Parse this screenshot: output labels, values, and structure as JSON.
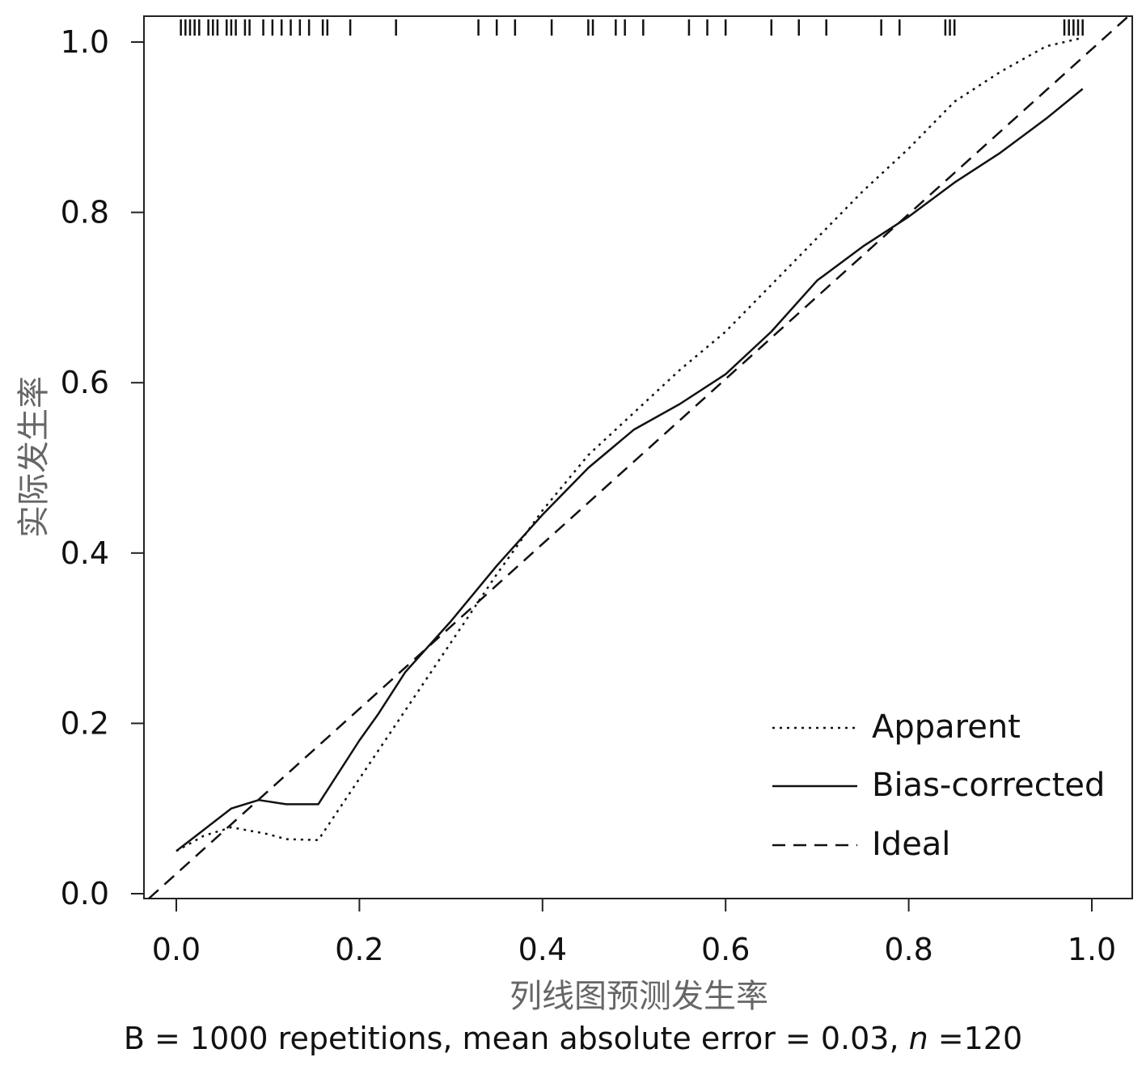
{
  "chart_data": {
    "type": "line",
    "xlabel": "列线图预测发生率",
    "ylabel": "实际发生率",
    "xlim": [
      0.0,
      1.0
    ],
    "ylim": [
      0.0,
      1.0
    ],
    "xticks": [
      "0.0",
      "0.2",
      "0.4",
      "0.6",
      "0.8",
      "1.0"
    ],
    "yticks": [
      "0.0",
      "0.2",
      "0.4",
      "0.6",
      "0.8",
      "1.0"
    ],
    "grid": false,
    "legend_position": "bottom-right",
    "series": [
      {
        "name": "Apparent",
        "style": "dotted",
        "x": [
          0.0,
          0.03,
          0.06,
          0.1,
          0.12,
          0.155,
          0.2,
          0.25,
          0.3,
          0.35,
          0.4,
          0.45,
          0.5,
          0.55,
          0.6,
          0.65,
          0.7,
          0.75,
          0.8,
          0.85,
          0.9,
          0.95,
          0.99
        ],
        "y": [
          0.05,
          0.068,
          0.078,
          0.07,
          0.064,
          0.063,
          0.135,
          0.215,
          0.295,
          0.375,
          0.45,
          0.515,
          0.565,
          0.615,
          0.66,
          0.715,
          0.77,
          0.825,
          0.875,
          0.93,
          0.965,
          0.995,
          1.005
        ]
      },
      {
        "name": "Bias-corrected",
        "style": "solid",
        "x": [
          0.0,
          0.03,
          0.06,
          0.09,
          0.12,
          0.155,
          0.2,
          0.22,
          0.25,
          0.3,
          0.35,
          0.4,
          0.45,
          0.5,
          0.55,
          0.6,
          0.65,
          0.7,
          0.75,
          0.8,
          0.85,
          0.9,
          0.95,
          0.99
        ],
        "y": [
          0.05,
          0.075,
          0.1,
          0.11,
          0.105,
          0.105,
          0.18,
          0.21,
          0.26,
          0.32,
          0.385,
          0.445,
          0.5,
          0.545,
          0.575,
          0.61,
          0.66,
          0.72,
          0.76,
          0.795,
          0.835,
          0.87,
          0.91,
          0.945
        ]
      },
      {
        "name": "Ideal",
        "style": "dashed",
        "x": [
          -0.03,
          1.04
        ],
        "y": [
          -0.03,
          1.04
        ]
      }
    ],
    "rug_x": [
      0.005,
      0.01,
      0.015,
      0.02,
      0.025,
      0.035,
      0.04,
      0.045,
      0.055,
      0.06,
      0.065,
      0.075,
      0.08,
      0.095,
      0.105,
      0.115,
      0.125,
      0.135,
      0.145,
      0.16,
      0.165,
      0.19,
      0.24,
      0.33,
      0.35,
      0.37,
      0.41,
      0.45,
      0.455,
      0.48,
      0.49,
      0.51,
      0.56,
      0.58,
      0.6,
      0.65,
      0.68,
      0.71,
      0.77,
      0.79,
      0.84,
      0.845,
      0.85,
      0.97,
      0.975,
      0.98,
      0.985,
      0.99
    ]
  },
  "legend": {
    "apparent": "Apparent",
    "bias_corrected": "Bias-corrected",
    "ideal": "Ideal"
  },
  "footnote": {
    "prefix": "B = 1000 repetitions, mean absolute error = 0.03, ",
    "n_symbol": "n",
    "suffix": " =120"
  }
}
